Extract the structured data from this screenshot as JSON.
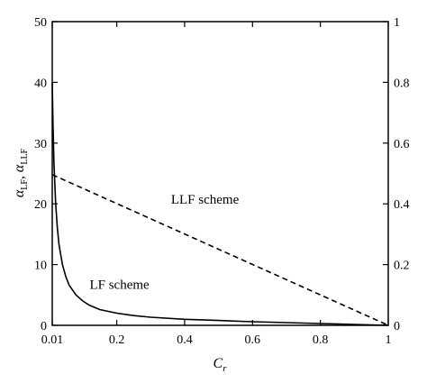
{
  "chart_data": {
    "type": "line",
    "xlabel": "C_r",
    "xlabel_main": "C",
    "xlabel_sub": "r",
    "ylabel_left": "α_LF, α_LLF",
    "ylabel_left_parts": {
      "a1": "α",
      "s1": "LF",
      "sep": ", ",
      "a2": "α",
      "s2": "LLF"
    },
    "xlim": [
      0.01,
      1
    ],
    "ylim_left": [
      0,
      50
    ],
    "ylim_right": [
      0,
      1
    ],
    "x_ticks": [
      0.01,
      0.2,
      0.4,
      0.6,
      0.8,
      1
    ],
    "x_tick_labels": [
      "0.01",
      "0.2",
      "0.4",
      "0.6",
      "0.8",
      "1"
    ],
    "y_left_ticks": [
      0,
      10,
      20,
      30,
      40,
      50
    ],
    "y_left_tick_labels": [
      "0",
      "10",
      "20",
      "30",
      "40",
      "50"
    ],
    "y_right_ticks": [
      0,
      0.2,
      0.4,
      0.6,
      0.8,
      1
    ],
    "y_right_tick_labels": [
      "0",
      "0.2",
      "0.4",
      "0.6",
      "0.8",
      "1"
    ],
    "grid": false,
    "legend": "none",
    "series": [
      {
        "line_style": "solid",
        "axis": "left",
        "x": [
          0.01,
          0.012,
          0.015,
          0.02,
          0.025,
          0.03,
          0.04,
          0.05,
          0.06,
          0.08,
          0.1,
          0.12,
          0.15,
          0.2,
          0.25,
          0.3,
          0.4,
          0.5,
          0.6,
          0.7,
          0.8,
          0.9,
          1.0
        ],
        "y": [
          40.0,
          33.3,
          26.6,
          20.0,
          16.0,
          13.3,
          10.0,
          8.0,
          6.6,
          5.0,
          4.0,
          3.3,
          2.6,
          2.0,
          1.6,
          1.33,
          1.0,
          0.8,
          0.6,
          0.45,
          0.3,
          0.15,
          0.0
        ]
      },
      {
        "line_style": "dashed",
        "axis": "left",
        "x": [
          0.01,
          1.0
        ],
        "y": [
          24.8,
          0.0
        ]
      }
    ],
    "annotations": [
      {
        "text": "LF scheme",
        "x": 0.12,
        "y": 6.0
      },
      {
        "text": "LLF scheme",
        "x": 0.36,
        "y": 20.0
      }
    ]
  }
}
